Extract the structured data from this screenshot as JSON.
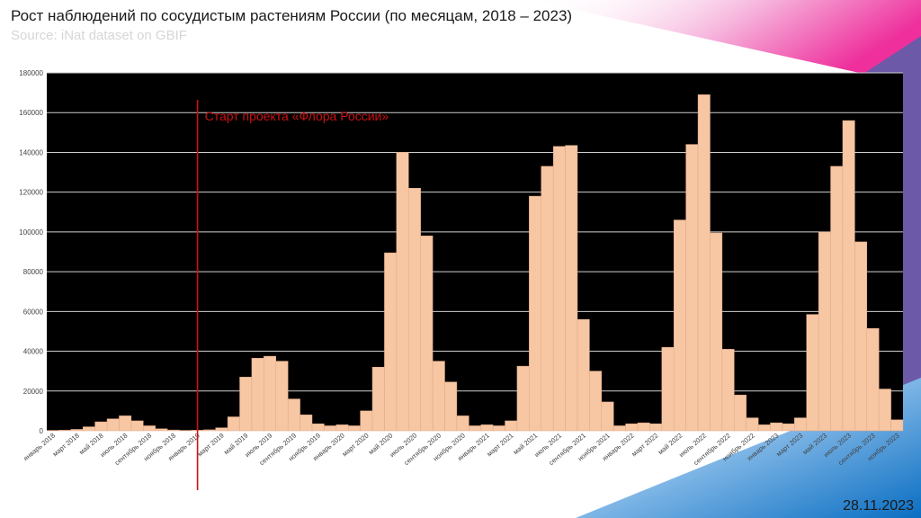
{
  "header": {
    "title": "Рост наблюдений по сосудистым растениям России (по месяцам, 2018 – 2023)",
    "subtitle": "Source: iNat dataset on GBIF"
  },
  "footer": {
    "date": "28.11.2023"
  },
  "colors": {
    "plot_bg": "#000000",
    "bar": "#f7c6a3",
    "bar_edge": "#e0a886",
    "grid": "#cfcfcf",
    "marker": "#cc1111"
  },
  "chart_data": {
    "type": "bar",
    "title": "Рост наблюдений по сосудистым растениям России (по месяцам, 2018 – 2023)",
    "ylim": [
      0,
      180000
    ],
    "yticks": [
      "0",
      "20000",
      "40000",
      "60000",
      "80000",
      "100000",
      "120000",
      "140000",
      "160000",
      "180000"
    ],
    "grid": true,
    "categories": [
      "январь 2018",
      "февраль 2018",
      "март 2018",
      "апрель 2018",
      "май 2018",
      "июнь 2018",
      "июль 2018",
      "август 2018",
      "сентябрь 2018",
      "октябрь 2018",
      "ноябрь 2018",
      "декабрь 2018",
      "январь 2019",
      "февраль 2019",
      "март 2019",
      "апрель 2019",
      "май 2019",
      "июнь 2019",
      "июль 2019",
      "август 2019",
      "сентябрь 2019",
      "октябрь 2019",
      "ноябрь 2019",
      "декабрь 2019",
      "январь 2020",
      "февраль 2020",
      "март 2020",
      "апрель 2020",
      "май 2020",
      "июнь 2020",
      "июль 2020",
      "август 2020",
      "сентябрь 2020",
      "октябрь 2020",
      "ноябрь 2020",
      "декабрь 2020",
      "январь 2021",
      "февраль 2021",
      "март 2021",
      "апрель 2021",
      "май 2021",
      "июнь 2021",
      "июль 2021",
      "август 2021",
      "сентябрь 2021",
      "октябрь 2021",
      "ноябрь 2021",
      "декабрь 2021",
      "январь 2022",
      "февраль 2022",
      "март 2022",
      "апрель 2022",
      "май 2022",
      "июнь 2022",
      "июль 2022",
      "август 2022",
      "сентябрь 2022",
      "октябрь 2022",
      "ноябрь 2022",
      "декабрь 2022",
      "январь 2023",
      "февраль 2023",
      "март 2023",
      "апрель 2023",
      "май 2023",
      "июнь 2023",
      "июль 2023",
      "август 2023",
      "сентябрь 2023",
      "октябрь 2023",
      "ноябрь 2023"
    ],
    "tick_labels": [
      "январь 2018",
      "март 2018",
      "май 2018",
      "июль 2018",
      "сентябрь 2018",
      "ноябрь 2018",
      "январь 2019",
      "март 2019",
      "май 2019",
      "июль 2019",
      "сентябрь 2019",
      "ноябрь 2019",
      "январь 2020",
      "март 2020",
      "май 2020",
      "июль 2020",
      "сентябрь 2020",
      "ноябрь 2020",
      "январь 2021",
      "март 2021",
      "май 2021",
      "июль 2021",
      "сентябрь 2021",
      "ноябрь 2021",
      "январь 2022",
      "март 2022",
      "май 2022",
      "июль 2022",
      "сентябрь 2022",
      "ноябрь 2022",
      "январь 2023",
      "март 2023",
      "май 2023",
      "июль 2023",
      "сентябрь 2023",
      "ноябрь 2023"
    ],
    "values": [
      200,
      300,
      700,
      2000,
      4500,
      6000,
      7500,
      5000,
      2500,
      1000,
      400,
      200,
      300,
      500,
      1500,
      7000,
      27000,
      36500,
      37500,
      35000,
      16000,
      8000,
      3500,
      2500,
      3000,
      2500,
      10000,
      32000,
      89500,
      140000,
      122000,
      98000,
      35000,
      24500,
      7500,
      2500,
      3000,
      2500,
      5000,
      32500,
      118000,
      133000,
      143000,
      143500,
      56000,
      30000,
      14500,
      2500,
      3500,
      4000,
      3500,
      42000,
      106000,
      144000,
      169000,
      99500,
      41000,
      18000,
      6500,
      3000,
      4000,
      3500,
      6500,
      58500,
      100000,
      133000,
      156000,
      95000,
      51500,
      21000,
      5500
    ],
    "annotation": {
      "text": "Старт проекта «Флора России»",
      "at_category": "январь 2019"
    }
  }
}
